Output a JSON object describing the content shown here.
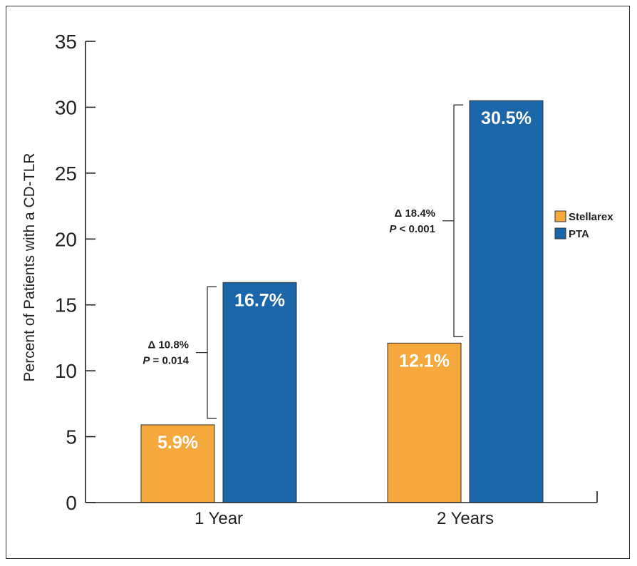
{
  "chart_data": {
    "type": "bar",
    "title": "",
    "xlabel": "",
    "ylabel": "Percent of Patients with a CD-TLR",
    "ylim": [
      0,
      35
    ],
    "yticks": [
      0,
      5,
      10,
      15,
      20,
      25,
      30,
      35
    ],
    "categories": [
      "1 Year",
      "2 Years"
    ],
    "series": [
      {
        "name": "Stellarex",
        "color": "#F5A83C",
        "values": [
          5.9,
          12.1
        ],
        "labels": [
          "5.9%",
          "12.1%"
        ]
      },
      {
        "name": "PTA",
        "color": "#1A66A8",
        "values": [
          16.7,
          30.5
        ],
        "labels": [
          "16.7%",
          "30.5%"
        ]
      }
    ],
    "annotations": [
      {
        "category": "1 Year",
        "from": 5.9,
        "to": 16.7,
        "delta": "Δ 10.8%",
        "p_label": "P",
        "p_rest": " = 0.014"
      },
      {
        "category": "2 Years",
        "from": 12.1,
        "to": 30.5,
        "delta": "Δ 18.4%",
        "p_label": "P",
        "p_rest": " < 0.001"
      }
    ],
    "legend": {
      "placement": "right"
    },
    "grid": false
  }
}
